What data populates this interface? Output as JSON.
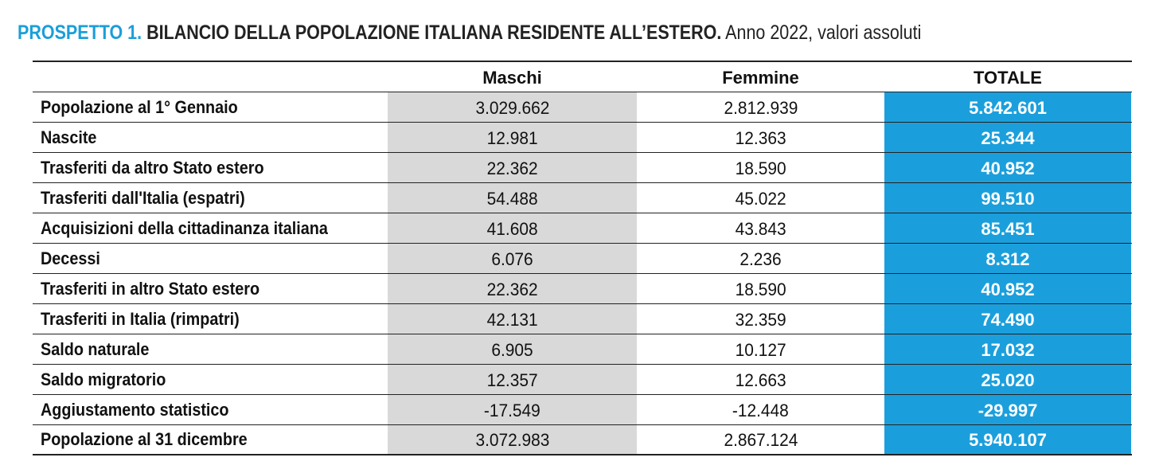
{
  "title": {
    "prefix": "PROSPETTO 1.",
    "main": "BILANCIO DELLA POPOLAZIONE ITALIANA RESIDENTE ALL’ESTERO.",
    "suffix": "Anno 2022, valori assoluti"
  },
  "columns": [
    "Maschi",
    "Femmine",
    "TOTALE"
  ],
  "rows": [
    {
      "label": "Popolazione al 1° Gennaio",
      "m": "3.029.662",
      "f": "2.812.939",
      "t": "5.842.601"
    },
    {
      "label": "Nascite",
      "m": "12.981",
      "f": "12.363",
      "t": "25.344"
    },
    {
      "label": "Trasferiti da altro Stato estero",
      "m": "22.362",
      "f": "18.590",
      "t": "40.952"
    },
    {
      "label": "Trasferiti dall'Italia (espatri)",
      "m": "54.488",
      "f": "45.022",
      "t": "99.510"
    },
    {
      "label": "Acquisizioni della cittadinanza italiana",
      "m": "41.608",
      "f": "43.843",
      "t": "85.451"
    },
    {
      "label": "Decessi",
      "m": "6.076",
      "f": "2.236",
      "t": "8.312"
    },
    {
      "label": "Trasferiti in altro Stato estero",
      "m": "22.362",
      "f": "18.590",
      "t": "40.952"
    },
    {
      "label": "Trasferiti in Italia (rimpatri)",
      "m": "42.131",
      "f": "32.359",
      "t": "74.490"
    },
    {
      "label": "Saldo naturale",
      "m": "6.905",
      "f": "10.127",
      "t": "17.032"
    },
    {
      "label": "Saldo migratorio",
      "m": "12.357",
      "f": "12.663",
      "t": "25.020"
    },
    {
      "label": "Aggiustamento statistico",
      "m": "-17.549",
      "f": "-12.448",
      "t": "-29.997"
    },
    {
      "label": "Popolazione al 31 dicembre",
      "m": "3.072.983",
      "f": "2.867.124",
      "t": "5.940.107"
    }
  ],
  "colors": {
    "accent": "#1b9fdc",
    "maschi_bg": "#d9d9d9"
  }
}
